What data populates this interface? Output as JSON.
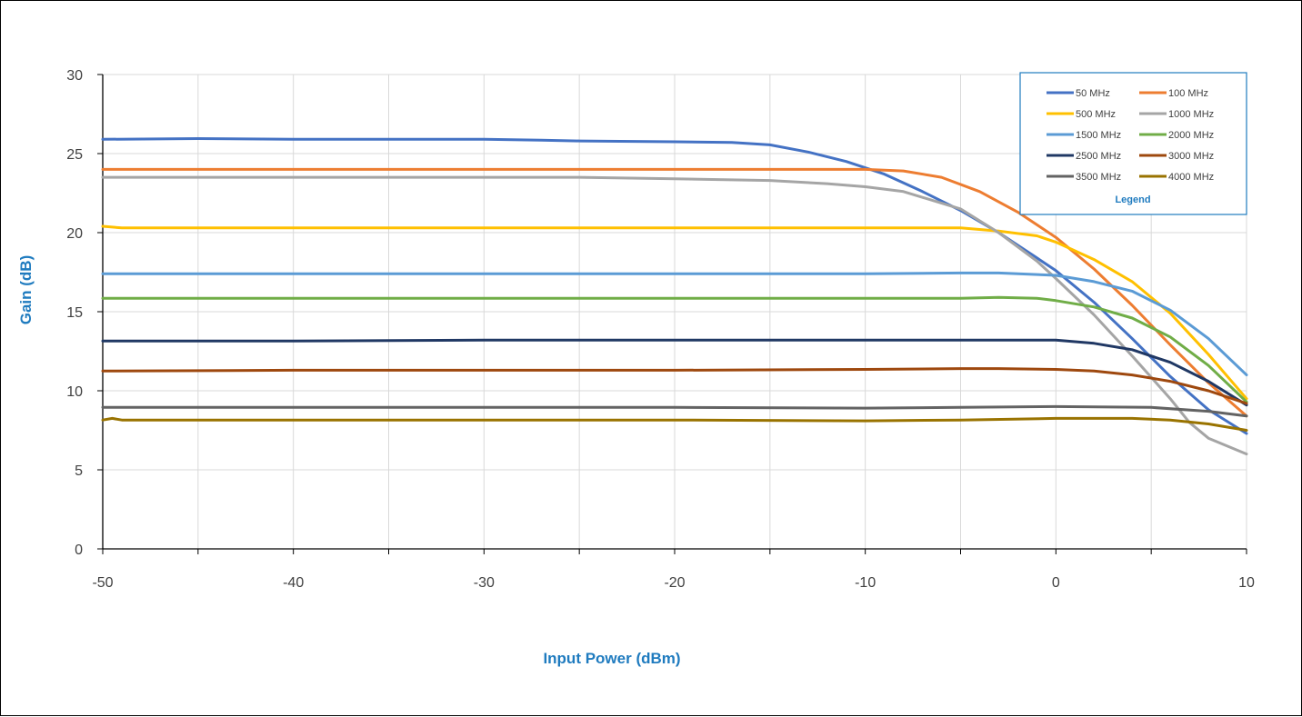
{
  "chart_data": {
    "type": "line",
    "title": "",
    "xlabel": "Input Power (dBm)",
    "ylabel": "Gain (dB)",
    "xlim": [
      -50,
      10
    ],
    "ylim": [
      0,
      30
    ],
    "xticks": [
      -50,
      -40,
      -30,
      -20,
      -10,
      0,
      10
    ],
    "yticks": [
      0,
      5,
      10,
      15,
      20,
      25,
      30
    ],
    "grid": true,
    "legend": {
      "title": "Legend",
      "placement": "top-right"
    },
    "series": [
      {
        "name": "50 MHz",
        "color": "#4472c4",
        "x": [
          -50,
          -45,
          -40,
          -35,
          -30,
          -27,
          -25,
          -20,
          -17,
          -15,
          -13,
          -11,
          -9,
          -7,
          -5,
          -3,
          -1,
          0,
          2,
          4,
          6,
          8,
          10
        ],
        "y": [
          25.9,
          25.95,
          25.9,
          25.9,
          25.9,
          25.85,
          25.8,
          25.75,
          25.7,
          25.55,
          25.1,
          24.5,
          23.7,
          22.6,
          21.4,
          20.0,
          18.4,
          17.6,
          15.6,
          13.3,
          10.9,
          8.8,
          7.3
        ]
      },
      {
        "name": "100 MHz",
        "color": "#ed7d31",
        "x": [
          -50,
          -40,
          -30,
          -20,
          -10,
          -8,
          -6,
          -4,
          -2,
          0,
          2,
          4,
          6,
          8,
          10
        ],
        "y": [
          24.0,
          24.0,
          24.0,
          24.0,
          24.0,
          23.9,
          23.5,
          22.6,
          21.3,
          19.7,
          17.7,
          15.4,
          12.9,
          10.5,
          8.4
        ]
      },
      {
        "name": "500 MHz",
        "color": "#ffc000",
        "x": [
          -50,
          -49,
          -40,
          -30,
          -20,
          -10,
          -5,
          -3,
          -1,
          0,
          2,
          4,
          6,
          8,
          10
        ],
        "y": [
          20.4,
          20.3,
          20.3,
          20.3,
          20.3,
          20.3,
          20.3,
          20.1,
          19.8,
          19.4,
          18.3,
          16.9,
          14.9,
          12.3,
          9.5
        ]
      },
      {
        "name": "1000 MHz",
        "color": "#a5a5a5",
        "x": [
          -50,
          -40,
          -30,
          -25,
          -20,
          -15,
          -12,
          -10,
          -8,
          -5,
          -3,
          -1,
          0,
          2,
          4,
          6,
          7,
          8,
          10
        ],
        "y": [
          23.5,
          23.5,
          23.5,
          23.5,
          23.4,
          23.3,
          23.1,
          22.9,
          22.6,
          21.5,
          20.0,
          18.2,
          17.1,
          14.8,
          12.2,
          9.5,
          8.0,
          7.0,
          6.0
        ]
      },
      {
        "name": "1500 MHz",
        "color": "#5b9bd5",
        "x": [
          -50,
          -40,
          -30,
          -20,
          -10,
          -5,
          -3,
          0,
          2,
          4,
          6,
          8,
          10
        ],
        "y": [
          17.4,
          17.4,
          17.4,
          17.4,
          17.4,
          17.45,
          17.45,
          17.3,
          16.9,
          16.3,
          15.1,
          13.3,
          11.0
        ]
      },
      {
        "name": "2000 MHz",
        "color": "#70ad47",
        "x": [
          -50,
          -40,
          -30,
          -20,
          -10,
          -5,
          -3,
          -1,
          0,
          2,
          4,
          6,
          8,
          10
        ],
        "y": [
          15.85,
          15.85,
          15.85,
          15.85,
          15.85,
          15.85,
          15.9,
          15.85,
          15.7,
          15.3,
          14.6,
          13.4,
          11.6,
          9.3
        ]
      },
      {
        "name": "2500 MHz",
        "color": "#203864",
        "x": [
          -50,
          -40,
          -30,
          -20,
          -10,
          -5,
          0,
          2,
          4,
          6,
          8,
          10
        ],
        "y": [
          13.15,
          13.15,
          13.2,
          13.2,
          13.2,
          13.2,
          13.2,
          13.0,
          12.6,
          11.8,
          10.6,
          9.1
        ]
      },
      {
        "name": "3000 MHz",
        "color": "#9e480e",
        "x": [
          -50,
          -40,
          -30,
          -20,
          -10,
          -5,
          -3,
          0,
          2,
          4,
          6,
          8,
          10
        ],
        "y": [
          11.25,
          11.3,
          11.3,
          11.3,
          11.35,
          11.4,
          11.4,
          11.35,
          11.25,
          11.0,
          10.6,
          10.0,
          9.2
        ]
      },
      {
        "name": "3500 MHz",
        "color": "#636363",
        "x": [
          -50,
          -40,
          -30,
          -20,
          -10,
          -5,
          0,
          5,
          8,
          10
        ],
        "y": [
          8.95,
          8.95,
          8.95,
          8.95,
          8.9,
          8.95,
          9.0,
          8.95,
          8.7,
          8.4
        ]
      },
      {
        "name": "4000 MHz",
        "color": "#997300",
        "x": [
          -50,
          -49.5,
          -49,
          -40,
          -30,
          -20,
          -10,
          -5,
          0,
          4,
          6,
          8,
          10
        ],
        "y": [
          8.15,
          8.25,
          8.15,
          8.15,
          8.15,
          8.15,
          8.1,
          8.15,
          8.25,
          8.25,
          8.15,
          7.9,
          7.5
        ]
      }
    ]
  }
}
